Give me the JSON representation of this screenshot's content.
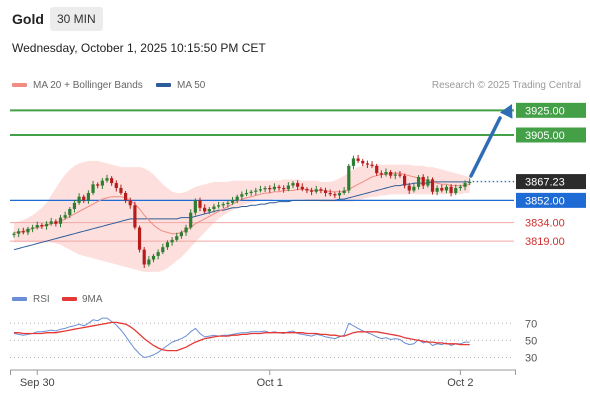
{
  "header": {
    "instrument": "Gold",
    "timeframe": "30 MIN"
  },
  "timestamp": "Wednesday, October 1, 2025 10:15:50 PM CET",
  "legend": [
    {
      "label": "MA 20 + Bollinger Bands",
      "color": "#f28b82"
    },
    {
      "label": "MA 50",
      "color": "#2e5c99"
    }
  ],
  "credit": "Research © 2025 Trading Central",
  "colors": {
    "up": "#2e7d32",
    "down": "#b71c1c",
    "target_up": "#43a047",
    "pivot": "#1e6bd6",
    "support": "#d32f2f",
    "arrow": "#2e6db4",
    "band": "#fde0dd"
  },
  "chart_data": [
    {
      "type": "candlestick",
      "ylim": [
        3785,
        3935
      ],
      "x_ticks": [
        {
          "label": "Sep 30",
          "index": 5
        },
        {
          "label": "Oct 1",
          "index": 55
        },
        {
          "label": "Oct 2",
          "index": 96
        }
      ],
      "current_price": "3867.23",
      "levels": [
        {
          "label": "3925.00",
          "value": 3925,
          "kind": "resistance"
        },
        {
          "label": "3905.00",
          "value": 3905,
          "kind": "resistance"
        },
        {
          "label": "3852.00",
          "value": 3852,
          "kind": "pivot"
        },
        {
          "label": "3834.00",
          "value": 3834,
          "kind": "support"
        },
        {
          "label": "3819.00",
          "value": 3819,
          "kind": "support"
        }
      ],
      "close": [
        3825,
        3827,
        3826,
        3829,
        3830,
        3832,
        3831,
        3833,
        3835,
        3833,
        3838,
        3840,
        3845,
        3850,
        3855,
        3852,
        3858,
        3865,
        3864,
        3868,
        3870,
        3866,
        3862,
        3858,
        3852,
        3848,
        3830,
        3812,
        3800,
        3804,
        3807,
        3810,
        3814,
        3818,
        3820,
        3823,
        3826,
        3830,
        3842,
        3852,
        3846,
        3843,
        3845,
        3847,
        3848,
        3849,
        3850,
        3852,
        3855,
        3857,
        3858,
        3859,
        3860,
        3861,
        3862,
        3861,
        3863,
        3862,
        3861,
        3864,
        3866,
        3863,
        3861,
        3860,
        3859,
        3861,
        3860,
        3858,
        3857,
        3856,
        3858,
        3860,
        3880,
        3886,
        3884,
        3882,
        3881,
        3880,
        3874,
        3873,
        3875,
        3872,
        3873,
        3872,
        3864,
        3860,
        3863,
        3871,
        3864,
        3869,
        3859,
        3862,
        3860,
        3863,
        3858,
        3862,
        3863,
        3866,
        3867
      ],
      "ma20": [
        3826,
        3826,
        3827,
        3828,
        3829,
        3830,
        3831,
        3832,
        3833,
        3834,
        3835,
        3837,
        3839,
        3841,
        3843,
        3845,
        3847,
        3849,
        3851,
        3853,
        3854,
        3855,
        3855,
        3855,
        3854,
        3852,
        3849,
        3845,
        3840,
        3836,
        3832,
        3829,
        3827,
        3826,
        3825,
        3825,
        3826,
        3828,
        3830,
        3833,
        3835,
        3837,
        3839,
        3841,
        3843,
        3845,
        3847,
        3849,
        3851,
        3853,
        3854,
        3855,
        3856,
        3857,
        3858,
        3858,
        3859,
        3859,
        3860,
        3860,
        3860,
        3861,
        3861,
        3861,
        3860,
        3860,
        3860,
        3860,
        3859,
        3859,
        3859,
        3859,
        3861,
        3863,
        3865,
        3867,
        3869,
        3871,
        3872,
        3873,
        3873,
        3874,
        3874,
        3874,
        3873,
        3872,
        3871,
        3870,
        3869,
        3868,
        3867,
        3866,
        3865,
        3865,
        3864,
        3864,
        3864,
        3864,
        3865
      ],
      "ma50": [
        3812,
        3813,
        3814,
        3815,
        3816,
        3817,
        3818,
        3819,
        3820,
        3821,
        3822,
        3823,
        3824,
        3825,
        3826,
        3827,
        3828,
        3829,
        3830,
        3831,
        3832,
        3833,
        3834,
        3835,
        3836,
        3837,
        3837,
        3837,
        3837,
        3837,
        3837,
        3837,
        3837,
        3837,
        3837,
        3837,
        3838,
        3838,
        3838,
        3839,
        3840,
        3841,
        3842,
        3843,
        3844,
        3844,
        3845,
        3846,
        3846,
        3847,
        3847,
        3848,
        3848,
        3849,
        3849,
        3850,
        3850,
        3851,
        3851,
        3851,
        3852,
        3852,
        3852,
        3852,
        3852,
        3852,
        3852,
        3852,
        3852,
        3852,
        3853,
        3853,
        3854,
        3855,
        3856,
        3857,
        3858,
        3859,
        3860,
        3861,
        3862,
        3863,
        3864,
        3864,
        3865,
        3865,
        3866,
        3866,
        3866,
        3866,
        3867,
        3867,
        3867,
        3867,
        3867,
        3867,
        3867,
        3867,
        3867
      ],
      "bb_upper": [
        3834,
        3835,
        3836,
        3838,
        3840,
        3843,
        3846,
        3850,
        3856,
        3862,
        3868,
        3873,
        3877,
        3880,
        3882,
        3883,
        3884,
        3884,
        3884,
        3883,
        3882,
        3881,
        3880,
        3879,
        3879,
        3879,
        3879,
        3879,
        3878,
        3876,
        3873,
        3869,
        3865,
        3862,
        3859,
        3858,
        3858,
        3859,
        3861,
        3863,
        3864,
        3865,
        3866,
        3867,
        3867,
        3867,
        3867,
        3868,
        3868,
        3868,
        3868,
        3868,
        3868,
        3868,
        3868,
        3868,
        3868,
        3868,
        3869,
        3869,
        3869,
        3869,
        3868,
        3868,
        3868,
        3868,
        3867,
        3867,
        3867,
        3868,
        3870,
        3872,
        3875,
        3877,
        3879,
        3880,
        3881,
        3881,
        3881,
        3881,
        3881,
        3881,
        3881,
        3881,
        3881,
        3881,
        3880,
        3880,
        3880,
        3879,
        3879,
        3878,
        3877,
        3876,
        3875,
        3874,
        3873,
        3872,
        3871
      ],
      "bb_lower": [
        3818,
        3818,
        3818,
        3818,
        3818,
        3818,
        3818,
        3818,
        3818,
        3817,
        3816,
        3814,
        3812,
        3810,
        3808,
        3807,
        3806,
        3805,
        3804,
        3803,
        3802,
        3801,
        3800,
        3799,
        3798,
        3797,
        3796,
        3795,
        3794,
        3794,
        3794,
        3794,
        3795,
        3797,
        3800,
        3803,
        3806,
        3810,
        3814,
        3818,
        3822,
        3826,
        3830,
        3834,
        3837,
        3840,
        3842,
        3844,
        3846,
        3848,
        3849,
        3850,
        3851,
        3852,
        3852,
        3852,
        3853,
        3853,
        3853,
        3853,
        3853,
        3853,
        3853,
        3852,
        3852,
        3852,
        3851,
        3851,
        3851,
        3851,
        3851,
        3851,
        3851,
        3851,
        3852,
        3853,
        3854,
        3855,
        3855,
        3856,
        3856,
        3857,
        3857,
        3857,
        3857,
        3857,
        3857,
        3857,
        3857,
        3857,
        3857,
        3857,
        3857,
        3857,
        3857,
        3857,
        3857,
        3858,
        3858
      ]
    },
    {
      "type": "line",
      "ylim": [
        20,
        82
      ],
      "y_ticks": [
        "70",
        "50",
        "30"
      ],
      "series": [
        {
          "name": "RSI",
          "color": "#6b8fd6",
          "values": [
            58,
            57,
            56,
            57,
            58,
            60,
            60,
            61,
            62,
            61,
            63,
            64,
            66,
            67,
            69,
            67,
            70,
            74,
            73,
            76,
            76,
            72,
            68,
            62,
            55,
            47,
            40,
            34,
            30,
            31,
            33,
            36,
            40,
            44,
            48,
            50,
            52,
            55,
            60,
            64,
            58,
            54,
            55,
            56,
            55,
            56,
            56,
            57,
            58,
            59,
            59,
            60,
            60,
            60,
            61,
            59,
            60,
            59,
            58,
            60,
            61,
            58,
            57,
            56,
            55,
            57,
            56,
            54,
            53,
            52,
            54,
            56,
            70,
            67,
            64,
            61,
            59,
            57,
            54,
            52,
            53,
            51,
            52,
            51,
            47,
            45,
            46,
            51,
            47,
            49,
            44,
            46,
            45,
            47,
            44,
            46,
            46,
            48,
            48
          ]
        },
        {
          "name": "9MA",
          "color": "#e53935",
          "values": [
            59,
            59,
            58,
            58,
            58,
            58,
            58,
            59,
            59,
            59,
            60,
            61,
            62,
            63,
            64,
            65,
            66,
            67,
            68,
            69,
            70,
            71,
            71,
            70,
            69,
            66,
            62,
            57,
            52,
            48,
            44,
            41,
            39,
            38,
            38,
            38,
            40,
            42,
            45,
            48,
            50,
            52,
            53,
            54,
            55,
            55,
            55,
            56,
            56,
            57,
            57,
            58,
            58,
            58,
            59,
            59,
            59,
            59,
            59,
            59,
            59,
            59,
            59,
            58,
            58,
            58,
            57,
            57,
            56,
            56,
            55,
            55,
            57,
            59,
            60,
            60,
            60,
            60,
            60,
            59,
            58,
            57,
            56,
            55,
            53,
            52,
            51,
            50,
            49,
            48,
            48,
            47,
            47,
            46,
            46,
            46,
            45,
            45,
            45
          ]
        }
      ]
    }
  ]
}
